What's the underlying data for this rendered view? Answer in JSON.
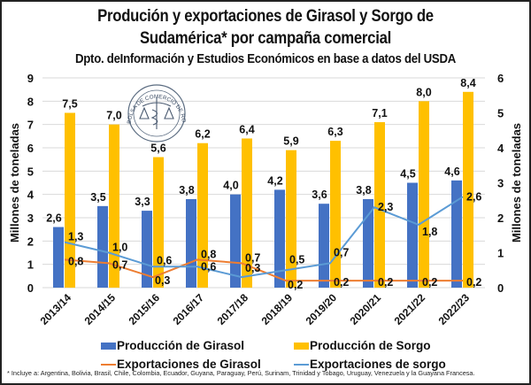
{
  "colors": {
    "girasol_prod": "#4472C4",
    "sorgo_prod": "#FFC000",
    "girasol_exp": "#ED7D31",
    "sorgo_exp": "#5B9BD5",
    "grid": "#D9D9D9",
    "text": "#111111"
  },
  "chart_data": {
    "type": "bar",
    "title": "Produción y exportaciones de Girasol y Sorgo de Sudamérica* por campaña comercial",
    "title_line1": "Produción y exportaciones de Girasol y Sorgo de",
    "title_line2": "Sudamérica* por campaña comercial",
    "subtitle": "Dpto. deInformación y Estudios Económicos en base a datos del USDA",
    "xlabel": "",
    "ylabel": "Millones de toneladas",
    "y2label": "Millones de toneladas",
    "ylim": [
      0,
      9
    ],
    "y2lim": [
      0,
      6
    ],
    "yticks": [
      "0",
      "1",
      "2",
      "3",
      "4",
      "5",
      "6",
      "7",
      "8",
      "9"
    ],
    "y2ticks": [
      "0",
      "1",
      "2",
      "3",
      "4",
      "5",
      "6"
    ],
    "grid": true,
    "legend_position": "bottom",
    "categories": [
      "2013/14",
      "2014/15",
      "2015/16",
      "2016/17",
      "2017/18",
      "2018/19",
      "2019/20",
      "2020/21",
      "2021/22",
      "2022/23"
    ],
    "series": [
      {
        "name": "Producción de Girasol",
        "type": "bar",
        "axis": "left",
        "values": [
          2.6,
          3.5,
          3.3,
          3.8,
          4.0,
          4.2,
          3.6,
          3.8,
          4.5,
          4.6
        ],
        "labels": [
          "2,6",
          "3,5",
          "3,3",
          "3,8",
          "4,0",
          "4,2",
          "3,6",
          "3,8",
          "4,5",
          "4,6"
        ]
      },
      {
        "name": "Producción de Sorgo",
        "type": "bar",
        "axis": "left",
        "values": [
          7.5,
          7.0,
          5.6,
          6.2,
          6.4,
          5.9,
          6.3,
          7.1,
          8.0,
          8.4
        ],
        "labels": [
          "7,5",
          "7,0",
          "5,6",
          "6,2",
          "6,4",
          "5,9",
          "6,3",
          "7,1",
          "8,0",
          "8,4"
        ]
      },
      {
        "name": "Exportaciones de Girasol",
        "type": "line",
        "axis": "right",
        "values": [
          0.8,
          0.7,
          0.3,
          0.8,
          0.7,
          0.2,
          0.2,
          0.2,
          0.2,
          0.2
        ],
        "labels": [
          "0,8",
          "0,7",
          "0,3",
          "0,8",
          "0,7",
          "0,2",
          "0,2",
          "0,2",
          "0,2",
          "0,2"
        ]
      },
      {
        "name": "Exportaciones de sorgo",
        "type": "line",
        "axis": "right",
        "values": [
          1.3,
          1.0,
          0.6,
          0.6,
          0.3,
          0.5,
          0.7,
          2.3,
          1.8,
          2.6
        ],
        "labels": [
          "1,3",
          "1,0",
          "0,6",
          "0,6",
          "0,3",
          "0,5",
          "0,7",
          "2,3",
          "1,8",
          "2,6"
        ]
      }
    ]
  },
  "logo": {
    "text": "BOLSA DE COMERCIO DE ROSARIO"
  },
  "footnote": "* Incluye a: Argentina, Bolivia, Brasil, Chile, Colombia, Ecuador, Guyana, Paraguay, Perú, Surinam, Trinidad y Tobago, Uruguay, Venezuela y la Guayana Francesa."
}
